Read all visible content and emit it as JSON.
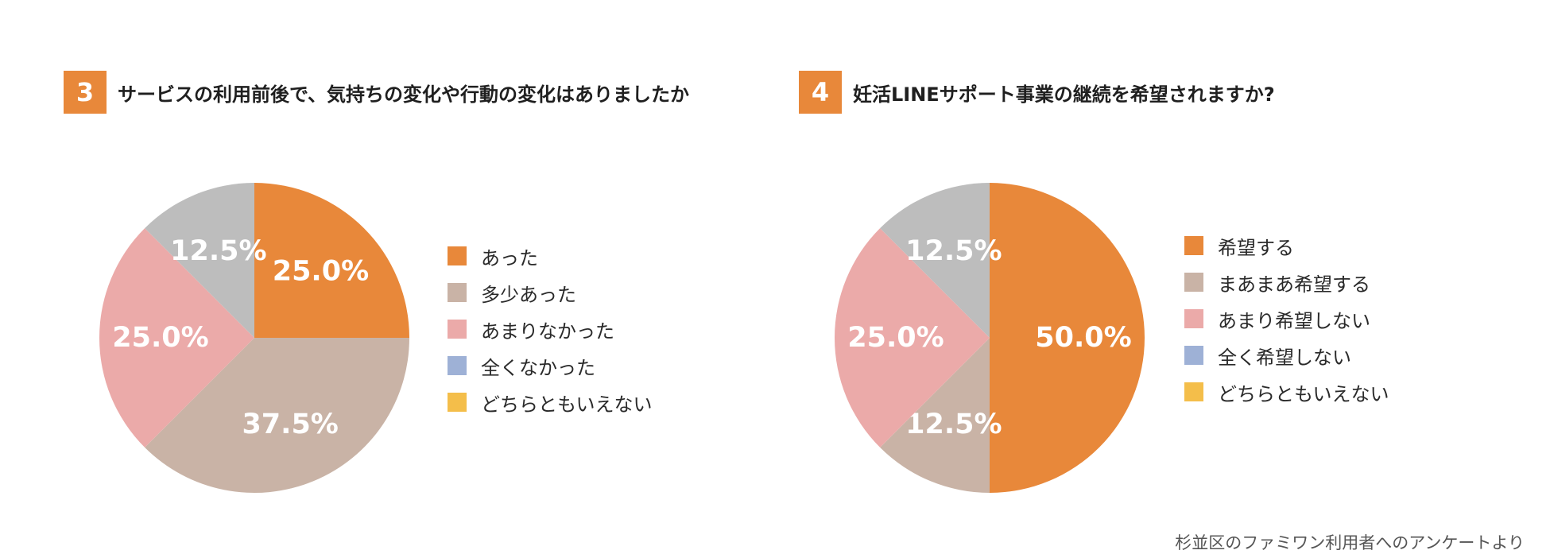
{
  "colors": {
    "accent": "#E8883A",
    "legend_palette": [
      "#E8883A",
      "#C9B3A6",
      "#EBAAA9",
      "#9EB1D6",
      "#F4BE4A"
    ],
    "gray_slice": "#BDBDBD"
  },
  "source_note": "杉並区のファミワン利用者へのアンケートより",
  "chart_data": [
    {
      "type": "pie",
      "number": "3",
      "title": "サービスの利用前後で、気持ちの変化や行動の変化はありましたか",
      "legend": [
        "あった",
        "多少あった",
        "あまりなかった",
        "全くなかった",
        "どちらともいえない"
      ],
      "slices": [
        {
          "label": "あった",
          "value": 25.0,
          "value_label": "25.0%",
          "color": "#E8883A"
        },
        {
          "label": "多少あった",
          "value": 37.5,
          "value_label": "37.5%",
          "color": "#C9B3A6"
        },
        {
          "label": "あまりなかった",
          "value": 25.0,
          "value_label": "25.0%",
          "color": "#EBAAA9"
        },
        {
          "label": "",
          "value": 12.5,
          "value_label": "12.5%",
          "color": "#BDBDBD"
        }
      ]
    },
    {
      "type": "pie",
      "number": "4",
      "title": "妊活LINEサポート事業の継続を希望されますか?",
      "legend": [
        "希望する",
        "まあまあ希望する",
        "あまり希望しない",
        "全く希望しない",
        "どちらともいえない"
      ],
      "slices": [
        {
          "label": "希望する",
          "value": 50.0,
          "value_label": "50.0%",
          "color": "#E8883A"
        },
        {
          "label": "まあまあ希望する",
          "value": 12.5,
          "value_label": "12.5%",
          "color": "#C9B3A6"
        },
        {
          "label": "あまり希望しない",
          "value": 25.0,
          "value_label": "25.0%",
          "color": "#EBAAA9"
        },
        {
          "label": "",
          "value": 12.5,
          "value_label": "12.5%",
          "color": "#BDBDBD"
        }
      ]
    }
  ]
}
